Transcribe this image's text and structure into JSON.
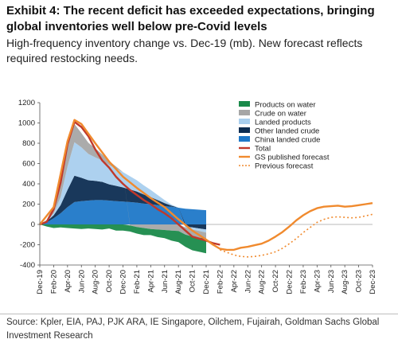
{
  "header": {
    "title": "Exhibit 4: The recent deficit has exceeded expectations, bringing global inventories well below pre-Covid levels",
    "subtitle": "High-frequency inventory change vs. Dec-19 (mb). New forecast reflects required restocking needs."
  },
  "footer": {
    "source": "Source: Kpler, EIA, PAJ, PJK ARA, IE Singapore, Oilchem, Fujairah, Goldman Sachs Global Investment Research"
  },
  "chart_data": {
    "type": "area",
    "ylim": [
      -400,
      1200
    ],
    "yticks": [
      -400,
      -200,
      0,
      200,
      400,
      600,
      800,
      1000,
      1200
    ],
    "xlim": [
      0,
      48
    ],
    "xticks": [
      "Dec-19",
      "Feb-20",
      "Apr-20",
      "Jun-20",
      "Aug-20",
      "Oct-20",
      "Dec-20",
      "Feb-21",
      "Apr-21",
      "Jun-21",
      "Aug-21",
      "Oct-21",
      "Dec-21",
      "Feb-22",
      "Apr-22",
      "Jun-22",
      "Aug-22",
      "Oct-22",
      "Dec-22",
      "Feb-23",
      "Apr-23",
      "Jun-23",
      "Aug-23",
      "Oct-23",
      "Dec-23"
    ],
    "legend_position": "top-right",
    "series": [
      {
        "name": "Products on water",
        "kind": "stack",
        "color": "#1a8a4a",
        "x": [
          0,
          1,
          2,
          3,
          4,
          5,
          6,
          7,
          8,
          9,
          10,
          11,
          12,
          13,
          14,
          15,
          16,
          17,
          18,
          19,
          20,
          21,
          22,
          23,
          24
        ],
        "values": [
          0,
          -20,
          -35,
          -30,
          -35,
          -40,
          -45,
          -40,
          -45,
          -50,
          -40,
          -60,
          -60,
          -60,
          -65,
          -70,
          -60,
          -75,
          -80,
          -100,
          -110,
          -120,
          -135,
          -140,
          -145
        ]
      },
      {
        "name": "Crude on water",
        "kind": "stack",
        "color": "#a6a6a6",
        "x": [
          0,
          1,
          2,
          3,
          4,
          5,
          6,
          7,
          8,
          9,
          10,
          11,
          12,
          13,
          14,
          15,
          16,
          17,
          18,
          19,
          20,
          21,
          22,
          23,
          24
        ],
        "values": [
          0,
          10,
          80,
          150,
          220,
          180,
          140,
          110,
          90,
          60,
          40,
          20,
          0,
          -10,
          -25,
          -35,
          -45,
          -50,
          -55,
          -60,
          -65,
          -70,
          -70,
          -65,
          -60
        ]
      },
      {
        "name": "Landed products",
        "kind": "stack",
        "color": "#a9cfee",
        "x": [
          0,
          1,
          2,
          3,
          4,
          5,
          6,
          7,
          8,
          9,
          10,
          11,
          12,
          13,
          14,
          15,
          16,
          17,
          18,
          19,
          20,
          21,
          22,
          23,
          24
        ],
        "values": [
          0,
          5,
          20,
          80,
          230,
          330,
          300,
          260,
          230,
          210,
          190,
          170,
          150,
          130,
          110,
          90,
          70,
          50,
          30,
          10,
          0,
          -10,
          -20,
          -25,
          -30
        ]
      },
      {
        "name": "Other landed crude",
        "kind": "stack",
        "color": "#0d2d52",
        "x": [
          0,
          1,
          2,
          3,
          4,
          5,
          6,
          7,
          8,
          9,
          10,
          11,
          12,
          13,
          14,
          15,
          16,
          17,
          18,
          19,
          20,
          21,
          22,
          23,
          24
        ],
        "values": [
          0,
          10,
          30,
          80,
          170,
          260,
          230,
          200,
          190,
          180,
          160,
          150,
          140,
          125,
          110,
          90,
          70,
          50,
          30,
          10,
          0,
          -20,
          -30,
          -40,
          -50
        ]
      },
      {
        "name": "China landed crude",
        "kind": "stack",
        "color": "#1f78c8",
        "x": [
          0,
          1,
          2,
          3,
          4,
          5,
          6,
          7,
          8,
          9,
          10,
          11,
          12,
          13,
          14,
          15,
          16,
          17,
          18,
          19,
          20,
          21,
          22,
          23,
          24
        ],
        "values": [
          0,
          20,
          60,
          110,
          170,
          220,
          230,
          235,
          240,
          240,
          235,
          230,
          225,
          220,
          215,
          205,
          200,
          190,
          180,
          175,
          165,
          155,
          150,
          145,
          140
        ]
      },
      {
        "name": "Total",
        "kind": "line",
        "color": "#c0392b",
        "dash": "",
        "x": [
          0,
          1,
          2,
          3,
          4,
          5,
          6,
          7,
          8,
          9,
          10,
          11,
          12,
          13,
          14,
          15,
          16,
          17,
          18,
          19,
          20,
          21,
          22,
          23,
          24,
          25,
          26
        ],
        "values": [
          0,
          25,
          150,
          410,
          790,
          1010,
          960,
          870,
          740,
          630,
          560,
          470,
          400,
          340,
          290,
          240,
          200,
          150,
          110,
          60,
          0,
          -60,
          -120,
          -140,
          -160,
          -185,
          -200
        ]
      },
      {
        "name": "GS published forecast",
        "kind": "line",
        "color": "#f08a2e",
        "dash": "",
        "x": [
          0,
          2,
          4,
          5,
          6,
          8,
          10,
          12,
          14,
          16,
          18,
          20,
          22,
          24,
          25,
          26,
          27,
          28,
          29,
          30,
          31,
          32,
          33,
          34,
          35,
          36,
          37,
          38,
          39,
          40,
          41,
          42,
          43,
          44,
          45,
          46,
          47,
          48
        ],
        "values": [
          0,
          170,
          820,
          1030,
          990,
          800,
          620,
          470,
          360,
          260,
          170,
          50,
          -60,
          -150,
          -200,
          -240,
          -250,
          -250,
          -230,
          -220,
          -205,
          -190,
          -160,
          -120,
          -75,
          -20,
          40,
          90,
          130,
          160,
          175,
          180,
          185,
          175,
          180,
          190,
          200,
          210
        ]
      },
      {
        "name": "Previous forecast",
        "kind": "line",
        "color": "#f08a2e",
        "dash": "2,3",
        "x": [
          26,
          27,
          28,
          29,
          30,
          31,
          32,
          33,
          34,
          35,
          36,
          37,
          38,
          39,
          40,
          41,
          42,
          43,
          44,
          45,
          46,
          47,
          48
        ],
        "values": [
          -250,
          -275,
          -300,
          -315,
          -320,
          -315,
          -305,
          -290,
          -270,
          -235,
          -190,
          -140,
          -80,
          -30,
          20,
          50,
          70,
          75,
          70,
          65,
          70,
          85,
          100
        ]
      }
    ]
  }
}
